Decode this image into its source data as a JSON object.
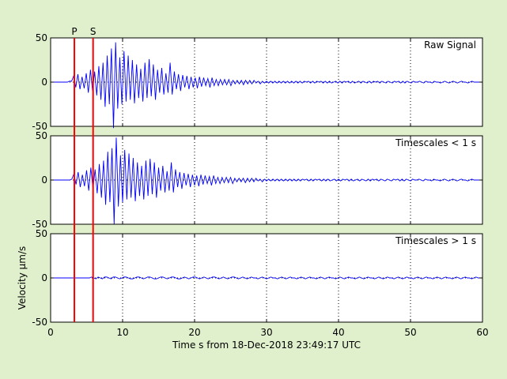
{
  "chart_data": {
    "type": "line",
    "xlabel": "Time s from 18-Dec-2018 23:49:17 UTC",
    "ylabel": "Velocity μm/s",
    "xlim": [
      0,
      60
    ],
    "ylim": [
      -50,
      50
    ],
    "xticks": [
      0,
      10,
      20,
      30,
      40,
      50,
      60
    ],
    "yticks": [
      -50,
      0,
      50
    ],
    "grid": true,
    "phase_markers": [
      {
        "label": "P",
        "x": 3.3,
        "color": "#ff0000"
      },
      {
        "label": "S",
        "x": 5.9,
        "color": "#ff0000"
      }
    ],
    "line_color": "#0000ff",
    "panels": [
      {
        "label": "Raw Signal",
        "values": [
          0,
          0,
          0,
          0,
          0,
          0,
          0,
          0,
          0,
          1,
          1,
          7,
          -6,
          9,
          -8,
          6,
          -7,
          10,
          -12,
          14,
          -10,
          12,
          -15,
          18,
          -20,
          22,
          -28,
          30,
          -25,
          38,
          -52,
          45,
          -30,
          28,
          -25,
          35,
          -22,
          30,
          -20,
          25,
          -24,
          20,
          -18,
          15,
          -22,
          22,
          -18,
          26,
          -16,
          20,
          -20,
          14,
          -12,
          16,
          -14,
          10,
          -12,
          22,
          -14,
          12,
          -8,
          9,
          -10,
          8,
          -6,
          7,
          -8,
          6,
          -6,
          5,
          -7,
          6,
          -5,
          5,
          -4,
          4,
          -6,
          5,
          -4,
          3,
          -4,
          3,
          -3,
          3,
          -3,
          3,
          -4,
          2,
          -2,
          2,
          -2,
          2,
          -3,
          2,
          -2,
          2,
          -2,
          2,
          -1,
          1,
          -2,
          1,
          -1,
          1,
          -1,
          1,
          -1,
          1,
          -1,
          1,
          -1,
          1,
          -1,
          1,
          -1,
          1,
          -1,
          1,
          -1,
          1,
          -1,
          1,
          0,
          1,
          -1,
          1,
          -1,
          1,
          0,
          1,
          -1,
          1,
          -1,
          1,
          -1,
          0,
          1,
          -1,
          1,
          -1,
          1,
          0,
          1,
          -1,
          1,
          -1,
          0,
          1,
          -1,
          1,
          0,
          -1,
          1,
          -1,
          1,
          0,
          1,
          -1,
          1,
          0,
          -1,
          1,
          0,
          -1,
          1,
          0,
          1,
          -1,
          1,
          -1,
          1,
          0,
          -1,
          1,
          0,
          0,
          1,
          0,
          -1,
          1,
          0,
          0,
          -1,
          1,
          0,
          0,
          -1,
          0,
          1,
          0,
          -1,
          0,
          1,
          0,
          -1,
          0,
          1,
          0,
          0,
          -1,
          0,
          1,
          0,
          0,
          0,
          0,
          0
        ]
      },
      {
        "label": "Timescales < 1 s",
        "values": [
          0,
          0,
          0,
          0,
          0,
          0,
          0,
          0,
          0,
          0,
          1,
          7,
          -5,
          9,
          -8,
          6,
          -7,
          11,
          -12,
          14,
          -10,
          12,
          -15,
          18,
          -20,
          22,
          -28,
          32,
          -25,
          36,
          -50,
          48,
          -30,
          28,
          -25,
          34,
          -22,
          30,
          -20,
          25,
          -24,
          20,
          -18,
          16,
          -22,
          22,
          -18,
          24,
          -16,
          20,
          -20,
          14,
          -12,
          16,
          -14,
          10,
          -12,
          20,
          -14,
          12,
          -8,
          9,
          -10,
          8,
          -6,
          7,
          -8,
          6,
          -6,
          5,
          -7,
          6,
          -5,
          5,
          -4,
          4,
          -6,
          5,
          -4,
          3,
          -4,
          3,
          -3,
          3,
          -3,
          3,
          -4,
          2,
          -2,
          2,
          -2,
          2,
          -3,
          2,
          -2,
          2,
          -2,
          2,
          -1,
          1,
          -2,
          1,
          -1,
          1,
          -1,
          1,
          -1,
          1,
          -1,
          1,
          -1,
          1,
          -1,
          1,
          -1,
          1,
          -1,
          1,
          -1,
          1,
          0,
          1,
          -1,
          1,
          -1,
          1,
          0,
          1,
          -1,
          1,
          -1,
          1,
          -1,
          0,
          1,
          -1,
          1,
          -1,
          1,
          0,
          1,
          -1,
          1,
          -1,
          0,
          1,
          -1,
          1,
          0,
          -1,
          1,
          -1,
          1,
          0,
          1,
          -1,
          1,
          0,
          -1,
          1,
          0,
          -1,
          1,
          0,
          1,
          -1,
          1,
          -1,
          1,
          0,
          -1,
          1,
          0,
          0,
          1,
          0,
          -1,
          1,
          0,
          0,
          -1,
          1,
          0,
          0,
          -1,
          0,
          1,
          0,
          -1,
          0,
          1,
          0,
          -1,
          0,
          1,
          0,
          0,
          -1,
          0,
          1,
          0,
          0,
          0,
          0,
          0
        ]
      },
      {
        "label": "Timescales > 1 s",
        "values": [
          0,
          0,
          0,
          0,
          0,
          0,
          0,
          0,
          0,
          0,
          0,
          0,
          0,
          0,
          0,
          0,
          0,
          0,
          0,
          1,
          0,
          -1,
          1,
          0,
          -1,
          1,
          1,
          0,
          -1,
          1,
          1,
          0,
          -1,
          0,
          1,
          1,
          0,
          -1,
          -1,
          0,
          1,
          1,
          0,
          -1,
          0,
          1,
          1,
          0,
          -1,
          -1,
          0,
          1,
          1,
          0,
          -1,
          0,
          1,
          1,
          0,
          -1,
          -1,
          0,
          1,
          0,
          -1,
          0,
          1,
          1,
          0,
          -1,
          0,
          1,
          0,
          -1,
          0,
          1,
          1,
          0,
          -1,
          0,
          1,
          0,
          -1,
          0,
          1,
          1,
          0,
          -1,
          0,
          1,
          0,
          -1,
          0,
          1,
          0,
          0,
          -1,
          0,
          1,
          0,
          -1,
          0,
          1,
          0,
          0,
          -1,
          0,
          1,
          0,
          -1,
          0,
          1,
          0,
          0,
          -1,
          0,
          1,
          0,
          -1,
          0,
          1,
          0,
          0,
          -1,
          0,
          1,
          0,
          -1,
          0,
          1,
          0,
          0,
          -1,
          0,
          1,
          0,
          -1,
          0,
          1,
          0,
          0,
          -1,
          0,
          1,
          0,
          -1,
          0,
          1,
          0,
          0,
          -1,
          0,
          1,
          0,
          -1,
          0,
          1,
          0,
          0,
          -1,
          0,
          1,
          0,
          -1,
          0,
          1,
          0,
          0,
          -1,
          0,
          1,
          0,
          -1,
          0,
          1,
          0,
          0,
          -1,
          0,
          1,
          0,
          -1,
          0,
          1,
          0,
          0,
          -1,
          0,
          1,
          0,
          -1,
          0,
          1,
          0,
          0,
          -1,
          0,
          1,
          0,
          0,
          0
        ]
      }
    ]
  }
}
